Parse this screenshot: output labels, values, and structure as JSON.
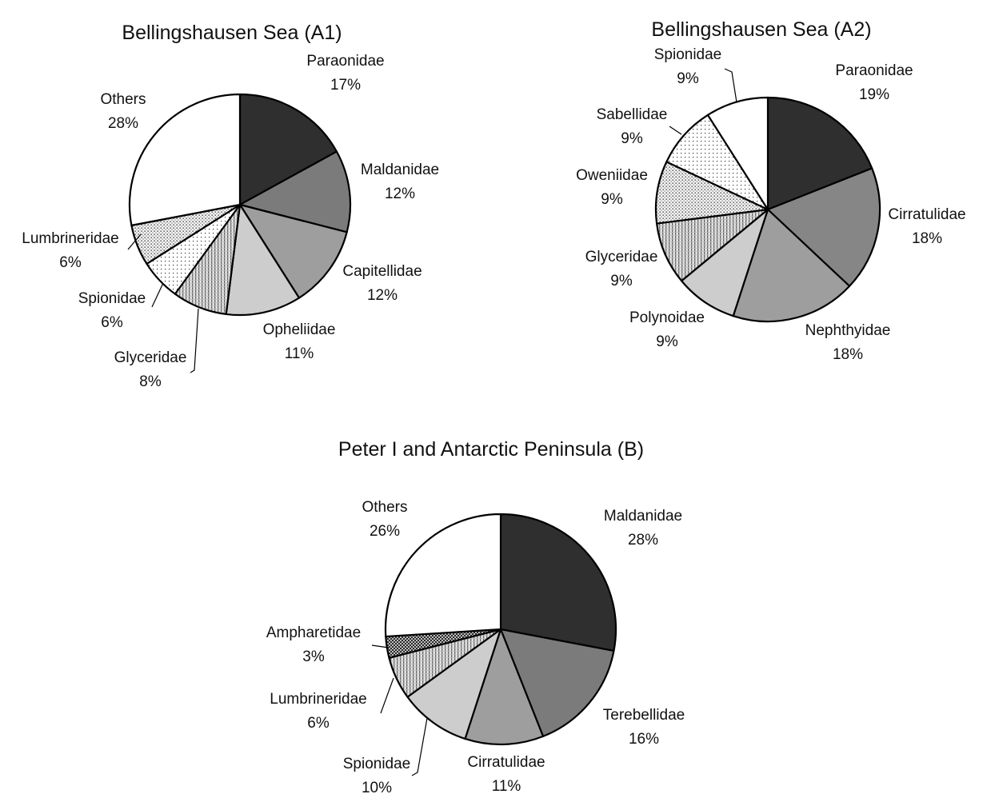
{
  "chart_data": [
    {
      "type": "pie",
      "title": "Bellingshausen Sea (A1)",
      "categories": [
        "Paraonidae",
        "Maldanidae",
        "Capitellidae",
        "Opheliidae",
        "Glyceridae",
        "Spionidae",
        "Lumbrineridae",
        "Others"
      ],
      "values": [
        17,
        12,
        12,
        11,
        8,
        6,
        6,
        28
      ],
      "value_labels": [
        "17%",
        "12%",
        "12%",
        "11%",
        "8%",
        "6%",
        "6%",
        "28%"
      ],
      "slice_order": "clockwise from 12 o'clock",
      "fills": [
        "dark",
        "dark-gray",
        "gray",
        "light-gray",
        "vertical-hatch",
        "sparse-dots",
        "dense-dots",
        "white"
      ]
    },
    {
      "type": "pie",
      "title": "Bellingshausen Sea (A2)",
      "categories": [
        "Paraonidae",
        "Cirratulidae",
        "Nephthyidae",
        "Polynoidae",
        "Glyceridae",
        "Oweniidae",
        "Sabellidae",
        "Spionidae"
      ],
      "values": [
        19,
        18,
        18,
        9,
        9,
        9,
        9,
        9
      ],
      "value_labels": [
        "19%",
        "18%",
        "18%",
        "9%",
        "9%",
        "9%",
        "9%",
        "9%"
      ],
      "slice_order": "clockwise from 12 o'clock",
      "fills": [
        "dark",
        "medium-gray",
        "gray",
        "light-gray",
        "vertical-hatch",
        "dense-dots",
        "sparse-dots",
        "white"
      ]
    },
    {
      "type": "pie",
      "title": "Peter I and Antarctic Peninsula (B)",
      "categories": [
        "Maldanidae",
        "Terebellidae",
        "Cirratulidae",
        "Spionidae",
        "Lumbrineridae",
        "Ampharetidae",
        "Others"
      ],
      "values": [
        28,
        16,
        11,
        10,
        6,
        3,
        26
      ],
      "value_labels": [
        "28%",
        "16%",
        "11%",
        "10%",
        "6%",
        "3%",
        "26%"
      ],
      "slice_order": "clockwise from 12 o'clock",
      "fills": [
        "dark",
        "dark-gray",
        "gray",
        "light-gray",
        "vertical-hatch",
        "dark-checker",
        "white"
      ]
    }
  ]
}
